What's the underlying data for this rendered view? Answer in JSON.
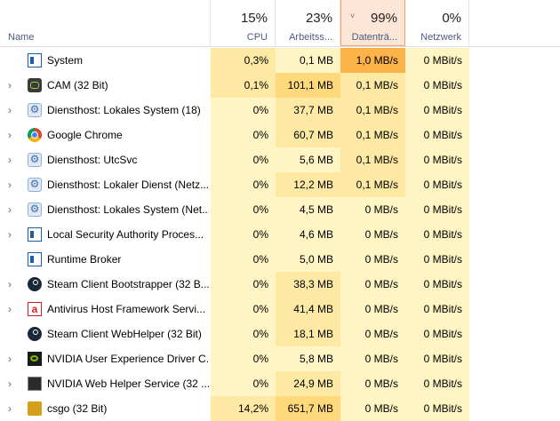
{
  "header": {
    "name_label": "Name",
    "cpu": {
      "pct": "15%",
      "label": "CPU"
    },
    "memory": {
      "pct": "23%",
      "label": "Arbeitss..."
    },
    "disk": {
      "pct": "99%",
      "label": "Datenträ..."
    },
    "network": {
      "pct": "0%",
      "label": "Netzwerk"
    }
  },
  "processes": [
    {
      "name": "System",
      "expandable": false,
      "icon": "system-icon",
      "cpu": "0,3%",
      "mem": "0,1 MB",
      "disk": "1,0 MB/s",
      "net": "0 MBit/s"
    },
    {
      "name": "CAM (32 Bit)",
      "expandable": true,
      "icon": "cam-icon",
      "cpu": "0,1%",
      "mem": "101,1 MB",
      "disk": "0,1 MB/s",
      "net": "0 MBit/s"
    },
    {
      "name": "Diensthost: Lokales System (18)",
      "expandable": true,
      "icon": "gear-icon",
      "cpu": "0%",
      "mem": "37,7 MB",
      "disk": "0,1 MB/s",
      "net": "0 MBit/s"
    },
    {
      "name": "Google Chrome",
      "expandable": true,
      "icon": "chrome-icon",
      "cpu": "0%",
      "mem": "60,7 MB",
      "disk": "0,1 MB/s",
      "net": "0 MBit/s"
    },
    {
      "name": "Diensthost: UtcSvc",
      "expandable": true,
      "icon": "gear-icon",
      "cpu": "0%",
      "mem": "5,6 MB",
      "disk": "0,1 MB/s",
      "net": "0 MBit/s"
    },
    {
      "name": "Diensthost: Lokaler Dienst (Netz...",
      "expandable": true,
      "icon": "gear-icon",
      "cpu": "0%",
      "mem": "12,2 MB",
      "disk": "0,1 MB/s",
      "net": "0 MBit/s"
    },
    {
      "name": "Diensthost: Lokales System (Net...",
      "expandable": true,
      "icon": "gear-icon",
      "cpu": "0%",
      "mem": "4,5 MB",
      "disk": "0 MB/s",
      "net": "0 MBit/s"
    },
    {
      "name": "Local Security Authority Proces...",
      "expandable": true,
      "icon": "system-icon",
      "cpu": "0%",
      "mem": "4,6 MB",
      "disk": "0 MB/s",
      "net": "0 MBit/s"
    },
    {
      "name": "Runtime Broker",
      "expandable": false,
      "icon": "system-icon",
      "cpu": "0%",
      "mem": "5,0 MB",
      "disk": "0 MB/s",
      "net": "0 MBit/s"
    },
    {
      "name": "Steam Client Bootstrapper (32 B...",
      "expandable": true,
      "icon": "steam-icon",
      "cpu": "0%",
      "mem": "38,3 MB",
      "disk": "0 MB/s",
      "net": "0 MBit/s"
    },
    {
      "name": "Antivirus Host Framework Servi...",
      "expandable": true,
      "icon": "avira-icon",
      "cpu": "0%",
      "mem": "41,4 MB",
      "disk": "0 MB/s",
      "net": "0 MBit/s"
    },
    {
      "name": "Steam Client WebHelper (32 Bit)",
      "expandable": false,
      "icon": "steam-icon",
      "cpu": "0%",
      "mem": "18,1 MB",
      "disk": "0 MB/s",
      "net": "0 MBit/s"
    },
    {
      "name": "NVIDIA User Experience Driver C...",
      "expandable": true,
      "icon": "nvidia-icon",
      "cpu": "0%",
      "mem": "5,8 MB",
      "disk": "0 MB/s",
      "net": "0 MBit/s"
    },
    {
      "name": "NVIDIA Web Helper Service (32 ...",
      "expandable": true,
      "icon": "nvidia-web-icon",
      "cpu": "0%",
      "mem": "24,9 MB",
      "disk": "0 MB/s",
      "net": "0 MBit/s"
    },
    {
      "name": "csgo (32 Bit)",
      "expandable": true,
      "icon": "csgo-icon",
      "cpu": "14,2%",
      "mem": "651,7 MB",
      "disk": "0 MB/s",
      "net": "0 MBit/s"
    }
  ],
  "colors": {
    "cell_light": "#fff4c4",
    "cell_medium": "#fde9a3",
    "cell_strong": "#fdd97b",
    "disk_hot": "#fbb34a",
    "sort_header_bg": "#fde6d6",
    "sort_header_border": "#f3a170"
  },
  "icons": {
    "expand": "›",
    "sort_caret": "˅"
  }
}
